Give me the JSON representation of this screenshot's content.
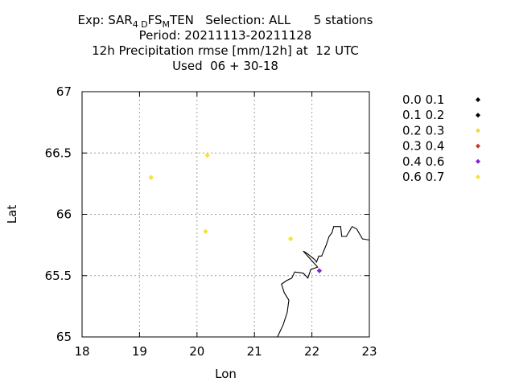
{
  "chart_data": {
    "type": "scatter",
    "title_lines": {
      "exp_prefix": "Exp: SAR",
      "exp_sub1": "4 D",
      "exp_mid": "FS",
      "exp_sub2": "M",
      "exp_suffix": "TEN   Selection: ALL      5 stations",
      "line2": "Period: 20211113-20211128",
      "line3": "12h Precipitation rmse [mm/12h] at  12 UTC",
      "line4": "Used  06 + 30-18"
    },
    "xlabel": "Lon",
    "ylabel": "Lat",
    "xlim": [
      18,
      23
    ],
    "ylim": [
      65,
      67
    ],
    "xticks": [
      "18",
      "19",
      "20",
      "21",
      "22",
      "23"
    ],
    "yticks": [
      "65",
      "65.5",
      "66",
      "66.5",
      "67"
    ],
    "grid": true,
    "legend_position": "right",
    "legend": [
      {
        "label": "0.0 0.1",
        "color": "#000000"
      },
      {
        "label": "0.1 0.2",
        "color": "#000000"
      },
      {
        "label": "0.2 0.3",
        "color": "#f5d442"
      },
      {
        "label": "0.3 0.4",
        "color": "#c0392b"
      },
      {
        "label": "0.4 0.6",
        "color": "#8a1fd6"
      },
      {
        "label": "0.6 0.7",
        "color": "#f5e23a"
      }
    ],
    "points": [
      {
        "lon": 19.2,
        "lat": 66.3,
        "color": "#f5e23a"
      },
      {
        "lon": 20.18,
        "lat": 66.48,
        "color": "#f5e23a"
      },
      {
        "lon": 20.15,
        "lat": 65.86,
        "color": "#f5e23a"
      },
      {
        "lon": 21.63,
        "lat": 65.8,
        "color": "#f5e23a"
      },
      {
        "lon": 22.13,
        "lat": 65.54,
        "color": "#8a1fd6"
      }
    ],
    "coastline": [
      [
        21.4,
        65.0
      ],
      [
        21.5,
        65.1
      ],
      [
        21.57,
        65.2
      ],
      [
        21.6,
        65.3
      ],
      [
        21.52,
        65.36
      ],
      [
        21.47,
        65.43
      ],
      [
        21.56,
        65.46
      ],
      [
        21.65,
        65.48
      ],
      [
        21.7,
        65.53
      ],
      [
        21.85,
        65.52
      ],
      [
        21.93,
        65.48
      ],
      [
        21.98,
        65.55
      ],
      [
        22.1,
        65.57
      ],
      [
        22.0,
        65.62
      ],
      [
        21.85,
        65.7
      ],
      [
        21.92,
        65.68
      ],
      [
        22.05,
        65.63
      ],
      [
        22.08,
        65.61
      ],
      [
        22.12,
        65.66
      ],
      [
        22.17,
        65.66
      ],
      [
        22.25,
        65.75
      ],
      [
        22.3,
        65.82
      ],
      [
        22.35,
        65.85
      ],
      [
        22.38,
        65.9
      ],
      [
        22.5,
        65.9
      ],
      [
        22.52,
        65.82
      ],
      [
        22.6,
        65.82
      ],
      [
        22.7,
        65.9
      ],
      [
        22.78,
        65.88
      ],
      [
        22.88,
        65.8
      ],
      [
        23.0,
        65.79
      ]
    ]
  }
}
